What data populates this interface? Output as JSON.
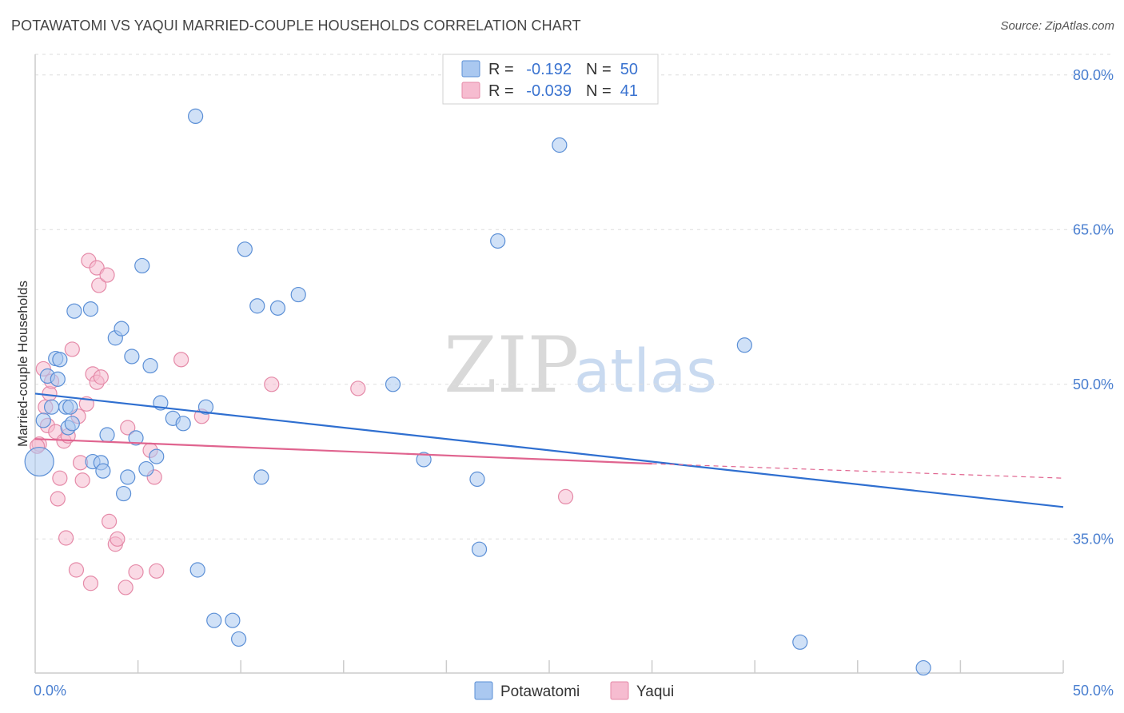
{
  "header": {
    "title": "POTAWATOMI VS YAQUI MARRIED-COUPLE HOUSEHOLDS CORRELATION CHART",
    "source": "Source: ZipAtlas.com"
  },
  "watermark": {
    "zip": "ZIP",
    "atlas": "atlas"
  },
  "colors": {
    "blue_fill": "#aac8f0",
    "blue_stroke": "#5b8fd6",
    "blue_line": "#2f6fd0",
    "pink_fill": "#f6bcd0",
    "pink_stroke": "#e58aa8",
    "pink_line": "#e0648f",
    "tick_text": "#4a7fd0",
    "grid": "#dddddd"
  },
  "legend": {
    "rows": [
      {
        "r_label": "R =",
        "r_value": "-0.192",
        "n_label": "N =",
        "n_value": "50"
      },
      {
        "r_label": "R =",
        "r_value": "-0.039",
        "n_label": "N =",
        "n_value": "41"
      }
    ]
  },
  "chart_data": {
    "type": "scatter",
    "title": "POTAWATOMI VS YAQUI MARRIED-COUPLE HOUSEHOLDS CORRELATION CHART",
    "xlabel": "",
    "ylabel": "Married-couple Households",
    "xlim": [
      0,
      50
    ],
    "ylim": [
      22,
      82
    ],
    "x_tick_labels": [
      "0.0%",
      "50.0%"
    ],
    "y_ticks": [
      35,
      50,
      65,
      80
    ],
    "y_tick_labels": [
      "35.0%",
      "50.0%",
      "65.0%",
      "80.0%"
    ],
    "grid": true,
    "legend_position": "bottom-center",
    "series": [
      {
        "name": "Potawatomi",
        "points": [
          [
            0.2,
            42.5
          ],
          [
            0.4,
            46.5
          ],
          [
            0.6,
            50.8
          ],
          [
            0.8,
            47.8
          ],
          [
            1.0,
            52.5
          ],
          [
            1.1,
            50.5
          ],
          [
            1.2,
            52.4
          ],
          [
            1.5,
            47.8
          ],
          [
            1.6,
            45.8
          ],
          [
            1.7,
            47.8
          ],
          [
            1.8,
            46.2
          ],
          [
            1.9,
            57.1
          ],
          [
            2.7,
            57.3
          ],
          [
            2.8,
            42.5
          ],
          [
            3.2,
            42.4
          ],
          [
            3.3,
            41.6
          ],
          [
            3.5,
            45.1
          ],
          [
            3.9,
            54.5
          ],
          [
            4.2,
            55.4
          ],
          [
            4.3,
            39.4
          ],
          [
            4.5,
            41.0
          ],
          [
            4.7,
            52.7
          ],
          [
            4.9,
            44.8
          ],
          [
            5.2,
            61.5
          ],
          [
            5.4,
            41.8
          ],
          [
            5.6,
            51.8
          ],
          [
            5.9,
            43.0
          ],
          [
            6.1,
            48.2
          ],
          [
            6.7,
            46.7
          ],
          [
            7.2,
            46.2
          ],
          [
            7.8,
            76.0
          ],
          [
            7.9,
            32.0
          ],
          [
            8.3,
            47.8
          ],
          [
            8.7,
            27.1
          ],
          [
            9.6,
            27.1
          ],
          [
            9.9,
            25.3
          ],
          [
            10.2,
            63.1
          ],
          [
            10.8,
            57.6
          ],
          [
            11.0,
            41.0
          ],
          [
            11.8,
            57.4
          ],
          [
            12.8,
            58.7
          ],
          [
            17.4,
            50.0
          ],
          [
            18.9,
            42.7
          ],
          [
            21.5,
            40.8
          ],
          [
            21.6,
            34.0
          ],
          [
            22.5,
            63.9
          ],
          [
            25.5,
            73.2
          ],
          [
            34.5,
            53.8
          ],
          [
            37.2,
            25.0
          ],
          [
            43.2,
            22.5
          ]
        ]
      },
      {
        "name": "Yaqui",
        "points": [
          [
            0.2,
            44.2
          ],
          [
            0.4,
            51.5
          ],
          [
            0.5,
            47.8
          ],
          [
            0.6,
            46.0
          ],
          [
            0.7,
            49.1
          ],
          [
            0.8,
            50.3
          ],
          [
            1.0,
            45.4
          ],
          [
            1.1,
            38.9
          ],
          [
            1.2,
            40.9
          ],
          [
            1.4,
            44.5
          ],
          [
            1.5,
            35.1
          ],
          [
            1.6,
            45.0
          ],
          [
            1.8,
            53.4
          ],
          [
            2.0,
            32.0
          ],
          [
            2.1,
            46.9
          ],
          [
            2.2,
            42.4
          ],
          [
            2.3,
            40.7
          ],
          [
            2.5,
            48.1
          ],
          [
            2.6,
            62.0
          ],
          [
            2.7,
            30.7
          ],
          [
            2.8,
            51.0
          ],
          [
            3.0,
            61.3
          ],
          [
            3.0,
            50.2
          ],
          [
            3.1,
            59.6
          ],
          [
            3.2,
            50.7
          ],
          [
            3.5,
            60.6
          ],
          [
            3.6,
            36.7
          ],
          [
            3.9,
            34.5
          ],
          [
            4.0,
            35.0
          ],
          [
            4.4,
            30.3
          ],
          [
            4.5,
            45.8
          ],
          [
            4.9,
            31.8
          ],
          [
            5.6,
            43.6
          ],
          [
            5.8,
            41.0
          ],
          [
            5.9,
            31.9
          ],
          [
            7.1,
            52.4
          ],
          [
            8.1,
            46.9
          ],
          [
            11.5,
            50.0
          ],
          [
            15.7,
            49.6
          ],
          [
            25.8,
            39.1
          ],
          [
            0.1,
            44.0
          ]
        ]
      }
    ],
    "trend_lines": [
      {
        "series": "Potawatomi",
        "x": [
          0,
          50
        ],
        "y": [
          49.1,
          38.1
        ],
        "style": "solid"
      },
      {
        "series": "Yaqui",
        "x": [
          0,
          30
        ],
        "y": [
          44.7,
          42.3
        ],
        "style": "solid"
      },
      {
        "series": "Yaqui",
        "x": [
          30,
          50
        ],
        "y": [
          42.3,
          40.9
        ],
        "style": "dashed"
      }
    ]
  }
}
